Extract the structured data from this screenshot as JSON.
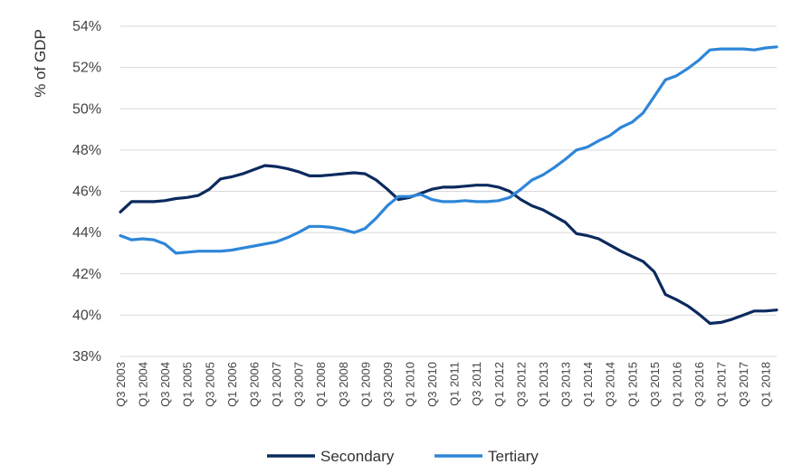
{
  "chart_data": {
    "type": "line",
    "title": "",
    "xlabel": "",
    "ylabel": "% of GDP",
    "ylim": [
      38,
      54
    ],
    "yticks": [
      38,
      40,
      42,
      44,
      46,
      48,
      50,
      52,
      54
    ],
    "ytick_format": "%",
    "grid": "horizontal",
    "legend_position": "bottom",
    "categories": [
      "Q3 2003",
      "Q4 2003",
      "Q1 2004",
      "Q2 2004",
      "Q3 2004",
      "Q4 2004",
      "Q1 2005",
      "Q2 2005",
      "Q3 2005",
      "Q4 2005",
      "Q1 2006",
      "Q2 2006",
      "Q3 2006",
      "Q4 2006",
      "Q1 2007",
      "Q2 2007",
      "Q3 2007",
      "Q4 2007",
      "Q1 2008",
      "Q2 2008",
      "Q3 2008",
      "Q4 2008",
      "Q1 2009",
      "Q2 2009",
      "Q3 2009",
      "Q4 2009",
      "Q1 2010",
      "Q2 2010",
      "Q3 2010",
      "Q4 2010",
      "Q1 2011",
      "Q2 2011",
      "Q3 2011",
      "Q4 2011",
      "Q1 2012",
      "Q2 2012",
      "Q3 2012",
      "Q4 2012",
      "Q1 2013",
      "Q2 2013",
      "Q3 2013",
      "Q4 2013",
      "Q1 2014",
      "Q2 2014",
      "Q3 2014",
      "Q4 2014",
      "Q1 2015",
      "Q2 2015",
      "Q3 2015",
      "Q4 2015",
      "Q1 2016",
      "Q2 2016",
      "Q3 2016",
      "Q4 2016",
      "Q1 2017",
      "Q2 2017",
      "Q3 2017",
      "Q4 2017",
      "Q1 2018",
      "Q2 2018"
    ],
    "xtick_labels": [
      "Q3 2003",
      "Q1 2004",
      "Q3 2004",
      "Q1 2005",
      "Q3 2005",
      "Q1 2006",
      "Q3 2006",
      "Q1 2007",
      "Q3 2007",
      "Q1 2008",
      "Q3 2008",
      "Q1 2009",
      "Q3 2009",
      "Q1 2010",
      "Q3 2010",
      "Q1 2011",
      "Q3 2011",
      "Q1 2012",
      "Q3 2012",
      "Q1 2013",
      "Q3 2013",
      "Q1 2014",
      "Q3 2014",
      "Q1 2015",
      "Q3 2015",
      "Q1 2016",
      "Q3 2016",
      "Q1 2017",
      "Q3 2017",
      "Q1 2018"
    ],
    "series": [
      {
        "name": "Secondary",
        "color": "#0b2a5e",
        "values": [
          45.0,
          45.5,
          45.5,
          45.5,
          45.55,
          45.65,
          45.7,
          45.8,
          46.1,
          46.6,
          46.7,
          46.85,
          47.05,
          47.25,
          47.2,
          47.1,
          46.95,
          46.75,
          46.75,
          46.8,
          46.85,
          46.9,
          46.85,
          46.55,
          46.1,
          45.6,
          45.7,
          45.9,
          46.1,
          46.2,
          46.2,
          46.25,
          46.3,
          46.3,
          46.2,
          46.0,
          45.6,
          45.3,
          45.1,
          44.8,
          44.5,
          43.95,
          43.85,
          43.7,
          43.4,
          43.1,
          42.85,
          42.6,
          42.1,
          41.0,
          40.75,
          40.45,
          40.05,
          39.6,
          39.65,
          39.8,
          40.0,
          40.2,
          40.2,
          40.25
        ]
      },
      {
        "name": "Tertiary",
        "color": "#2e86d8",
        "values": [
          43.85,
          43.65,
          43.7,
          43.65,
          43.45,
          43.0,
          43.05,
          43.1,
          43.1,
          43.1,
          43.15,
          43.25,
          43.35,
          43.45,
          43.55,
          43.75,
          44.0,
          44.3,
          44.3,
          44.25,
          44.15,
          44.0,
          44.2,
          44.7,
          45.3,
          45.75,
          45.75,
          45.85,
          45.6,
          45.5,
          45.5,
          45.55,
          45.5,
          45.5,
          45.55,
          45.7,
          46.1,
          46.55,
          46.8,
          47.15,
          47.55,
          48.0,
          48.15,
          48.45,
          48.7,
          49.1,
          49.35,
          49.8,
          50.6,
          51.4,
          51.6,
          51.95,
          52.35,
          52.85,
          52.9,
          52.9,
          52.9,
          52.85,
          52.95,
          53.0
        ]
      }
    ]
  }
}
